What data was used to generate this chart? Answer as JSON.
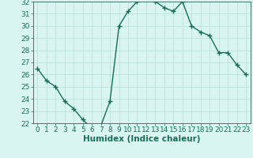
{
  "x": [
    0,
    1,
    2,
    3,
    4,
    5,
    6,
    7,
    8,
    9,
    10,
    11,
    12,
    13,
    14,
    15,
    16,
    17,
    18,
    19,
    20,
    21,
    22,
    23
  ],
  "y": [
    26.5,
    25.5,
    25.0,
    23.8,
    23.2,
    22.3,
    21.6,
    21.8,
    23.8,
    30.0,
    31.2,
    32.0,
    32.2,
    32.0,
    31.5,
    31.2,
    32.0,
    30.0,
    29.5,
    29.2,
    27.8,
    27.8,
    26.8,
    26.0
  ],
  "line_color": "#1a6b5a",
  "marker": "+",
  "marker_size": 4,
  "marker_lw": 1.0,
  "bg_color": "#d8f5f0",
  "grid_color": "#b8ddd8",
  "xlabel": "Humidex (Indice chaleur)",
  "ylim": [
    22,
    32
  ],
  "xlim": [
    -0.5,
    23.5
  ],
  "yticks": [
    22,
    23,
    24,
    25,
    26,
    27,
    28,
    29,
    30,
    31,
    32
  ],
  "xticks": [
    0,
    1,
    2,
    3,
    4,
    5,
    6,
    7,
    8,
    9,
    10,
    11,
    12,
    13,
    14,
    15,
    16,
    17,
    18,
    19,
    20,
    21,
    22,
    23
  ],
  "tick_fontsize": 6.5,
  "xlabel_fontsize": 7.5,
  "linewidth": 1.0
}
